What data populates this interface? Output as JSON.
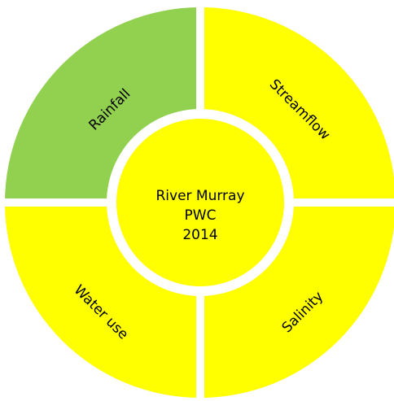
{
  "segments": [
    {
      "label": "Rainfall"
    },
    {
      "label": "Streamflow"
    },
    {
      "label": "Water use"
    },
    {
      "label": "Salinity"
    }
  ],
  "center": {
    "lines": [
      "River Murray",
      "PWC",
      "2014"
    ]
  }
}
